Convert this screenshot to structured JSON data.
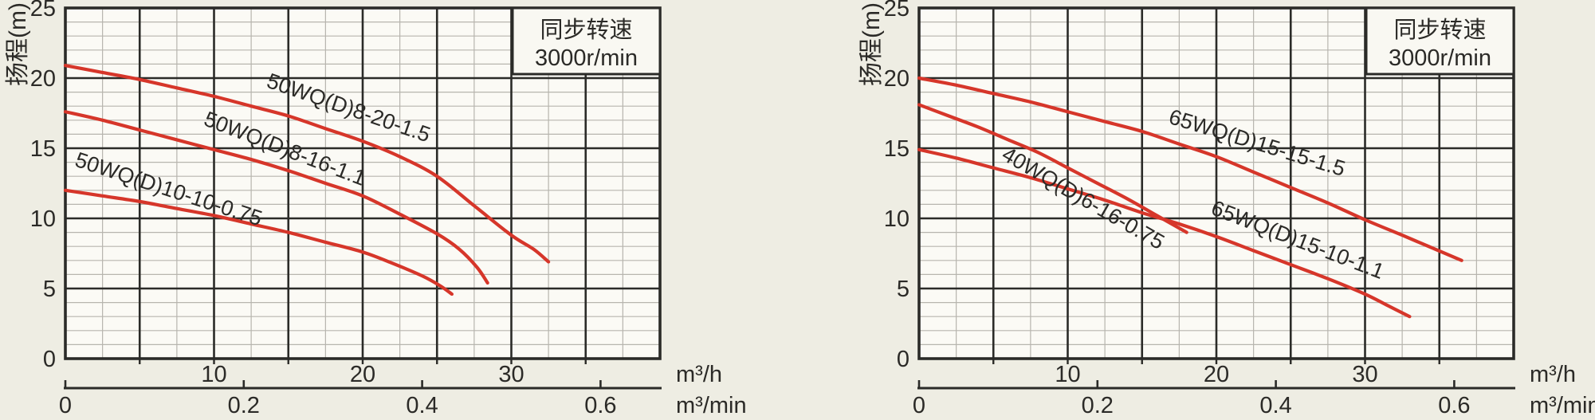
{
  "colors": {
    "curve_red": "#d6362a",
    "legend_blue": "#156f9d",
    "grid_major": "#2b2b28",
    "grid_minor": "#b7b5ae",
    "page_bg": "#eeede3",
    "plot_bg": "#fbfaf5",
    "text": "#2b2a27"
  },
  "chart_data": [
    {
      "type": "line",
      "ylabel": "扬程(m)",
      "legend_lines": [
        "同步转速",
        "3000r/min"
      ],
      "y_axis": {
        "ticks": [
          0,
          5,
          10,
          15,
          20,
          25
        ],
        "range": [
          0,
          25
        ],
        "grid": "on"
      },
      "x_axis_primary": {
        "unit": "m³/h",
        "ticks": [
          10,
          20,
          30
        ],
        "range": [
          0,
          40
        ]
      },
      "x_axis_secondary": {
        "unit": "m³/min",
        "ticks": [
          0,
          0.2,
          0.4,
          0.6
        ]
      },
      "series": [
        {
          "name": "50WQ(D)8-20-1.5",
          "points": [
            [
              0,
              20.9
            ],
            [
              2.5,
              20.4
            ],
            [
              5,
              19.9
            ],
            [
              7.5,
              19.3
            ],
            [
              10,
              18.7
            ],
            [
              12.5,
              18.0
            ],
            [
              15,
              17.3
            ],
            [
              17.5,
              16.4
            ],
            [
              20,
              15.5
            ],
            [
              22.5,
              14.4
            ],
            [
              25,
              13.0
            ],
            [
              27.5,
              10.9
            ],
            [
              30,
              8.8
            ],
            [
              31.5,
              7.8
            ],
            [
              32.5,
              6.9
            ]
          ],
          "label": {
            "u": 18.9,
            "v": 17.4,
            "angle": 19
          }
        },
        {
          "name": "50WQ(D)8-16-1.1",
          "points": [
            [
              0,
              17.6
            ],
            [
              2.5,
              17.0
            ],
            [
              5,
              16.3
            ],
            [
              7.5,
              15.6
            ],
            [
              10,
              14.9
            ],
            [
              12.5,
              14.2
            ],
            [
              15,
              13.4
            ],
            [
              17.5,
              12.5
            ],
            [
              20,
              11.6
            ],
            [
              22.5,
              10.3
            ],
            [
              25,
              8.9
            ],
            [
              26.5,
              7.8
            ],
            [
              27.7,
              6.5
            ],
            [
              28.4,
              5.4
            ]
          ],
          "label": {
            "u": 14.6,
            "v": 14.5,
            "angle": 21
          }
        },
        {
          "name": "50WQ(D)10-10-0.75",
          "points": [
            [
              0,
              12.0
            ],
            [
              2.5,
              11.6
            ],
            [
              5,
              11.2
            ],
            [
              7.5,
              10.7
            ],
            [
              10,
              10.2
            ],
            [
              12.5,
              9.6
            ],
            [
              15,
              9.0
            ],
            [
              17.5,
              8.3
            ],
            [
              20,
              7.6
            ],
            [
              22,
              6.8
            ],
            [
              24,
              5.9
            ],
            [
              25.2,
              5.2
            ],
            [
              26,
              4.6
            ]
          ],
          "label": {
            "u": 6.8,
            "v": 11.6,
            "angle": 18
          }
        }
      ]
    },
    {
      "type": "line",
      "ylabel": "扬程(m)",
      "legend_lines": [
        "同步转速",
        "3000r/min"
      ],
      "y_axis": {
        "ticks": [
          0,
          5,
          10,
          15,
          20,
          25
        ],
        "range": [
          0,
          25
        ],
        "grid": "on"
      },
      "x_axis_primary": {
        "unit": "m³/h",
        "ticks": [
          10,
          20,
          30
        ],
        "range": [
          0,
          40
        ]
      },
      "x_axis_secondary": {
        "unit": "m³/min",
        "ticks": [
          0,
          0.2,
          0.4,
          0.6
        ]
      },
      "series": [
        {
          "name": "65WQ(D)15-15-1.5",
          "points": [
            [
              0,
              20.0
            ],
            [
              2.5,
              19.5
            ],
            [
              5,
              18.9
            ],
            [
              7.5,
              18.3
            ],
            [
              10,
              17.6
            ],
            [
              12.5,
              16.9
            ],
            [
              15,
              16.2
            ],
            [
              17.5,
              15.3
            ],
            [
              20,
              14.4
            ],
            [
              22.5,
              13.3
            ],
            [
              25,
              12.2
            ],
            [
              27.5,
              11.1
            ],
            [
              30,
              9.9
            ],
            [
              32.5,
              8.8
            ],
            [
              34.5,
              7.9
            ],
            [
              36.5,
              7.0
            ]
          ],
          "label": {
            "u": 22.6,
            "v": 14.9,
            "angle": 17
          }
        },
        {
          "name": "40WQ(D)6-16-0.75",
          "points": [
            [
              0,
              18.1
            ],
            [
              2,
              17.3
            ],
            [
              4,
              16.5
            ],
            [
              6,
              15.6
            ],
            [
              8,
              14.7
            ],
            [
              10,
              13.6
            ],
            [
              12,
              12.5
            ],
            [
              14,
              11.4
            ],
            [
              16,
              10.2
            ],
            [
              17,
              9.6
            ],
            [
              18,
              9.0
            ]
          ],
          "label": {
            "u": 10.8,
            "v": 11.0,
            "angle": 30
          }
        },
        {
          "name": "65WQ(D)15-10-1.1",
          "points": [
            [
              0,
              14.9
            ],
            [
              2.5,
              14.3
            ],
            [
              5,
              13.6
            ],
            [
              7.5,
              12.9
            ],
            [
              10,
              12.1
            ],
            [
              12.5,
              11.3
            ],
            [
              15,
              10.4
            ],
            [
              17.5,
              9.6
            ],
            [
              20,
              8.7
            ],
            [
              22.5,
              7.7
            ],
            [
              25,
              6.7
            ],
            [
              27.5,
              5.7
            ],
            [
              30,
              4.6
            ],
            [
              31.5,
              3.8
            ],
            [
              33,
              3.0
            ]
          ],
          "label": {
            "u": 25.3,
            "v": 8.0,
            "angle": 21
          }
        }
      ]
    }
  ]
}
